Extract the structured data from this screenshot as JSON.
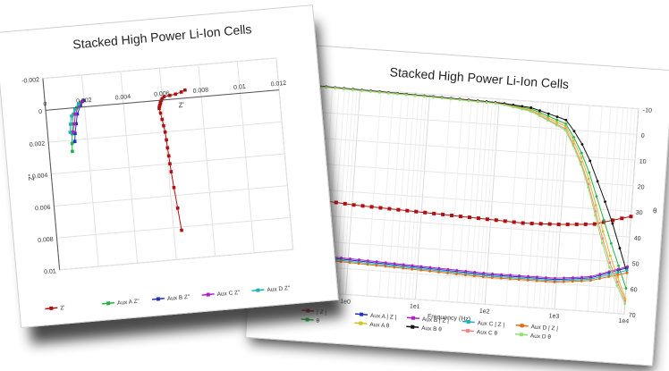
{
  "chart_data": [
    {
      "type": "scatter",
      "title": "Stacked High Power Li-Ion Cells",
      "xlabel": "Z'",
      "ylabel": "Z\"",
      "xlim": [
        0,
        0.012
      ],
      "ylim": [
        0.01,
        -0.002
      ],
      "x_ticks": [
        "0",
        "0.002",
        "0.004",
        "0.006",
        "0.008",
        "0.01",
        "0.012"
      ],
      "y_ticks": [
        "-0.002",
        "0",
        "0.002",
        "0.004",
        "0.006",
        "0.008",
        "0.01"
      ],
      "grid": true,
      "legend_position": "bottom",
      "series": [
        {
          "name": "Z'",
          "color": "#b01010",
          "x": [
            0.0072,
            0.007,
            0.0067,
            0.0064,
            0.0061,
            0.006,
            0.00595,
            0.0059,
            0.00588,
            0.00585,
            0.00582,
            0.0058,
            0.00585,
            0.0059,
            0.00595,
            0.006,
            0.00603,
            0.00605,
            0.00608,
            0.0061,
            0.00613,
            0.0062,
            0.0063,
            0.0064
          ],
          "y": [
            -0.0005,
            -0.0004,
            -0.0003,
            -0.00025,
            -0.0002,
            -0.0001,
            0.0,
            0.0001,
            0.0002,
            0.0003,
            0.0004,
            0.0005,
            0.0008,
            0.0012,
            0.0016,
            0.002,
            0.0025,
            0.003,
            0.0035,
            0.004,
            0.0045,
            0.0055,
            0.0068,
            0.0082
          ]
        },
        {
          "name": "Aux A Z\"",
          "color": "#22b04a",
          "x": [
            0.0018,
            0.0016,
            0.0014,
            0.0013,
            0.00125,
            0.0012,
            0.00118
          ],
          "y": [
            -0.0003,
            0.0,
            0.0004,
            0.001,
            0.0016,
            0.0022,
            0.0027
          ]
        },
        {
          "name": "Aux B Z\"",
          "color": "#2233bb",
          "x": [
            0.002,
            0.0018,
            0.0016,
            0.0015,
            0.0014,
            0.00135
          ],
          "y": [
            -0.0004,
            -0.0001,
            0.0004,
            0.001,
            0.0016,
            0.0021
          ]
        },
        {
          "name": "Aux C Z\"",
          "color": "#b020c0",
          "x": [
            0.0019,
            0.0017,
            0.0015,
            0.0014,
            0.0013
          ],
          "y": [
            -0.00035,
            -0.0001,
            0.0004,
            0.001,
            0.0015
          ]
        },
        {
          "name": "Aux D Z\"",
          "color": "#20b0b8",
          "x": [
            0.0017,
            0.0015,
            0.0013,
            0.0012,
            0.00115
          ],
          "y": [
            -0.0002,
            0.0001,
            0.0005,
            0.001,
            0.0015
          ]
        }
      ]
    },
    {
      "type": "line",
      "title": "Stacked High Power Li-Ion Cells",
      "xlabel": "Frequency (Hz)",
      "ylabel": "θ",
      "x_scale": "log",
      "xlim": [
        0.1,
        10000
      ],
      "y_right_lim": [
        -10,
        70
      ],
      "x_ticks": [
        "1e-1",
        "1e0",
        "1e1",
        "1e2",
        "1e3",
        "1e4"
      ],
      "y_right_ticks": [
        "-10",
        "0",
        "10",
        "20",
        "30",
        "40",
        "50",
        "60",
        "70"
      ],
      "grid": true,
      "legend_position": "bottom",
      "series": [
        {
          "name": "| Z |",
          "color": "#b01010",
          "marker": "square",
          "x": [
            0.1,
            0.3,
            1,
            3,
            10,
            30,
            100,
            300,
            1000,
            3000,
            10000
          ],
          "y": [
            33,
            34,
            35,
            35.5,
            36,
            36.5,
            37,
            37.5,
            37,
            36,
            32
          ]
        },
        {
          "name": "θ",
          "color": "#22b04a",
          "x": [
            0.1,
            1,
            10,
            100,
            300,
            1000,
            2000,
            5000,
            10000
          ],
          "y": [
            -10.5,
            -9.8,
            -9.2,
            -8.5,
            -7,
            -2,
            12,
            40,
            60
          ]
        },
        {
          "name": "Aux A | Z |",
          "color": "#2233bb",
          "x": [
            0.1,
            1,
            10,
            100,
            1000,
            3000,
            10000
          ],
          "y": [
            55.5,
            56.5,
            57.5,
            58.5,
            58.5,
            57,
            52
          ]
        },
        {
          "name": "Aux A θ",
          "color": "#d4c020",
          "x": [
            0.1,
            1,
            10,
            100,
            300,
            1000,
            2000,
            5000,
            10000
          ],
          "y": [
            -10.4,
            -9.7,
            -9.1,
            -8.4,
            -6.5,
            -1,
            14,
            45,
            64
          ]
        },
        {
          "name": "Aux B | Z |",
          "color": "#b020c0",
          "x": [
            0.1,
            1,
            10,
            100,
            1000,
            3000,
            10000
          ],
          "y": [
            55,
            56,
            57,
            58,
            58,
            56.5,
            51.5
          ]
        },
        {
          "name": "Aux B θ",
          "color": "#111111",
          "x": [
            0.1,
            1,
            10,
            100,
            300,
            1000,
            2000,
            5000,
            10000
          ],
          "y": [
            -10.5,
            -9.8,
            -9.2,
            -8.6,
            -7.5,
            -3.5,
            8,
            32,
            54
          ]
        },
        {
          "name": "Aux C | Z |",
          "color": "#20b0b8",
          "x": [
            0.1,
            1,
            10,
            100,
            1000,
            3000,
            10000
          ],
          "y": [
            56,
            57,
            58,
            59,
            59,
            57.5,
            53
          ]
        },
        {
          "name": "Aux C θ",
          "color": "#ff8080",
          "x": [
            0.1,
            1,
            10,
            100,
            300,
            1000,
            2000,
            5000,
            10000
          ],
          "y": [
            -10.3,
            -9.6,
            -9,
            -8.3,
            -6.2,
            0,
            16,
            48,
            65
          ]
        },
        {
          "name": "Aux D | Z |",
          "color": "#e06a10",
          "x": [
            0.1,
            1,
            10,
            100,
            1000,
            3000,
            10000
          ],
          "y": [
            56.5,
            57.5,
            58.5,
            59.5,
            59.5,
            58,
            54
          ]
        },
        {
          "name": "Aux D θ",
          "color": "#90e070",
          "x": [
            0.1,
            1,
            10,
            100,
            300,
            1000,
            2000,
            5000,
            10000
          ],
          "y": [
            -10.2,
            -9.5,
            -8.9,
            -8.2,
            -6,
            0.5,
            17,
            50,
            66
          ]
        }
      ]
    }
  ]
}
